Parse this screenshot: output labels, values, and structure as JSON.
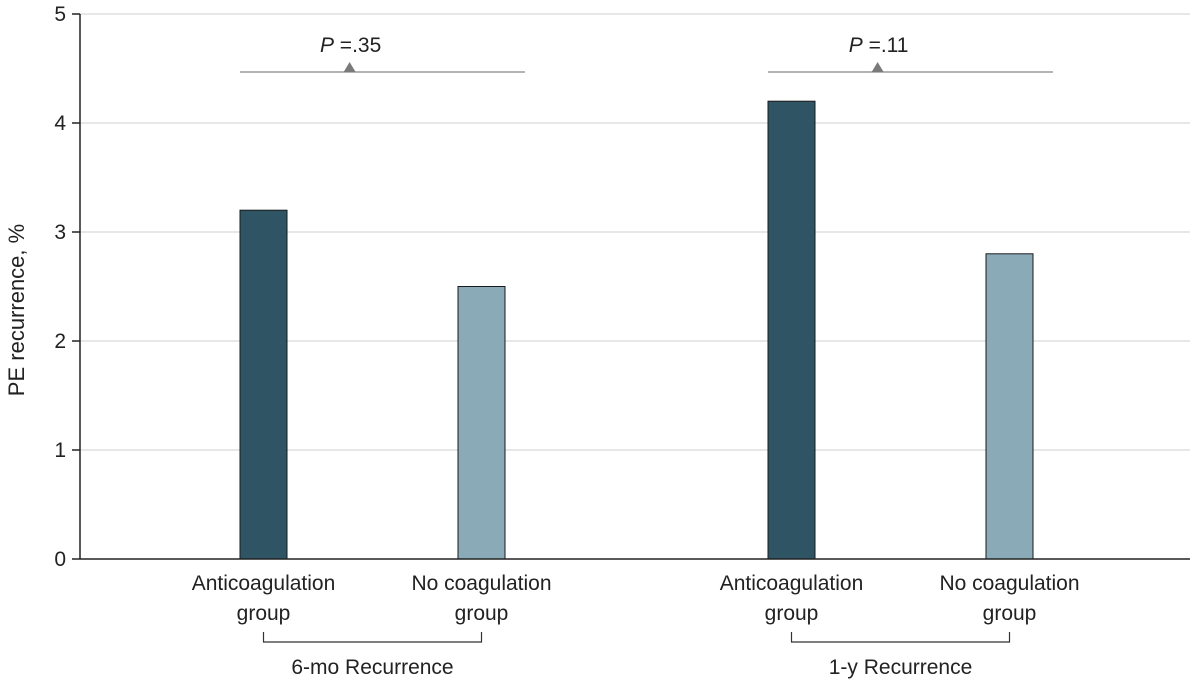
{
  "chart_data": {
    "type": "bar",
    "ylabel": "PE recurrence, %",
    "ylim": [
      0,
      5
    ],
    "yticks": [
      0,
      1,
      2,
      3,
      4,
      5
    ],
    "grid": true,
    "groups": [
      {
        "label": "6-mo Recurrence",
        "p_prefix": "P",
        "p_value": " =.35",
        "bars": [
          {
            "category_line1": "Anticoagulation",
            "category_line2": "group",
            "value": 3.2,
            "color": "#2f5564"
          },
          {
            "category_line1": "No coagulation",
            "category_line2": "group",
            "value": 2.5,
            "color": "#8aaab8"
          }
        ]
      },
      {
        "label": "1-y Recurrence",
        "p_prefix": "P",
        "p_value": " =.11",
        "bars": [
          {
            "category_line1": "Anticoagulation",
            "category_line2": "group",
            "value": 4.2,
            "color": "#2f5564"
          },
          {
            "category_line1": "No coagulation",
            "category_line2": "group",
            "value": 2.8,
            "color": "#8aaab8"
          }
        ]
      }
    ]
  }
}
